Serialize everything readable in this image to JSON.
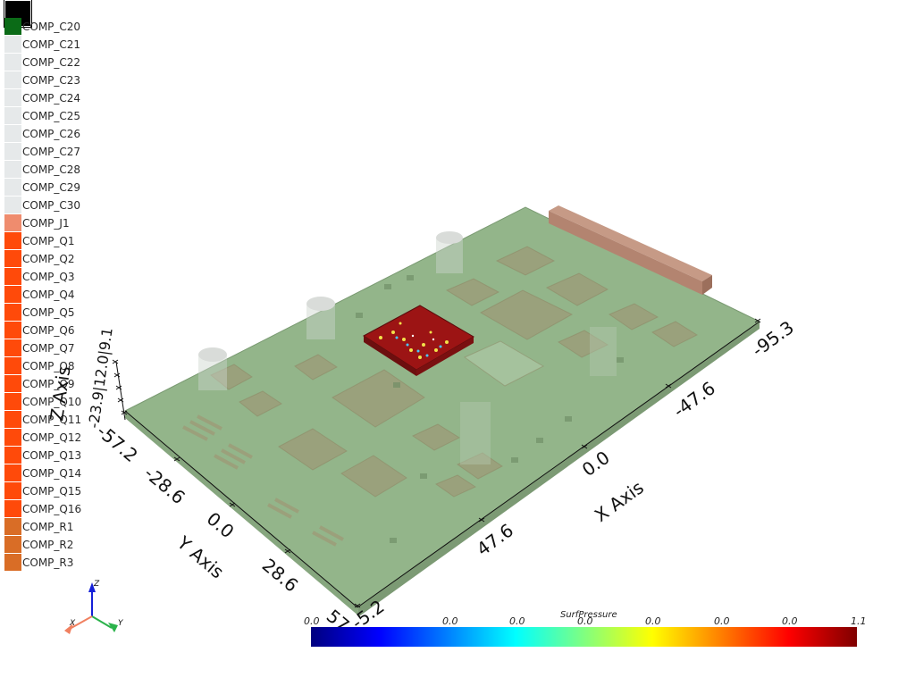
{
  "legend": {
    "items": [
      {
        "label": "COMP_C20",
        "color": "#0b6b17"
      },
      {
        "label": "COMP_C21",
        "color": "#e6e9ea"
      },
      {
        "label": "COMP_C22",
        "color": "#e6e9ea"
      },
      {
        "label": "COMP_C23",
        "color": "#e6e9ea"
      },
      {
        "label": "COMP_C24",
        "color": "#e6e9ea"
      },
      {
        "label": "COMP_C25",
        "color": "#e6e9ea"
      },
      {
        "label": "COMP_C26",
        "color": "#e6e9ea"
      },
      {
        "label": "COMP_C27",
        "color": "#e6e9ea"
      },
      {
        "label": "COMP_C28",
        "color": "#e6e9ea"
      },
      {
        "label": "COMP_C29",
        "color": "#e6e9ea"
      },
      {
        "label": "COMP_C30",
        "color": "#e6e9ea"
      },
      {
        "label": "COMP_J1",
        "color": "#ef8c6e"
      },
      {
        "label": "COMP_Q1",
        "color": "#ff4a0a"
      },
      {
        "label": "COMP_Q2",
        "color": "#ff4a0a"
      },
      {
        "label": "COMP_Q3",
        "color": "#ff4a0a"
      },
      {
        "label": "COMP_Q4",
        "color": "#ff4a0a"
      },
      {
        "label": "COMP_Q5",
        "color": "#ff4a0a"
      },
      {
        "label": "COMP_Q6",
        "color": "#ff4a0a"
      },
      {
        "label": "COMP_Q7",
        "color": "#ff4a0a"
      },
      {
        "label": "COMP_Q8",
        "color": "#ff4a0a"
      },
      {
        "label": "COMP_Q9",
        "color": "#ff4a0a"
      },
      {
        "label": "COMP_Q10",
        "color": "#ff4a0a"
      },
      {
        "label": "COMP_Q11",
        "color": "#ff4a0a"
      },
      {
        "label": "COMP_Q12",
        "color": "#ff4a0a"
      },
      {
        "label": "COMP_Q13",
        "color": "#ff4a0a"
      },
      {
        "label": "COMP_Q14",
        "color": "#ff4a0a"
      },
      {
        "label": "COMP_Q15",
        "color": "#ff4a0a"
      },
      {
        "label": "COMP_Q16",
        "color": "#ff4a0a"
      },
      {
        "label": "COMP_R1",
        "color": "#d96d26"
      },
      {
        "label": "COMP_R2",
        "color": "#d96d26"
      },
      {
        "label": "COMP_R3",
        "color": "#d96d26"
      }
    ]
  },
  "axes": {
    "x_title": "X Axis",
    "y_title": "Y Axis",
    "z_title": "Z Axis",
    "x_ticks": [
      "-95.3",
      "-47.6",
      "0.0",
      "47.6"
    ],
    "y_ticks": [
      "-57.2",
      "-28.6",
      "0.0",
      "28.6",
      "57.2"
    ],
    "z_ticks_overlap": "-23.9|12.0|9.1",
    "x_end_partial": "-5.2"
  },
  "orientation": {
    "x": "X",
    "y": "Y",
    "z": "Z"
  },
  "colorbar": {
    "title": "SurfPressure",
    "ticks": [
      "0.0",
      "0.0",
      "0.0",
      "0.0",
      "0.0",
      "0.0",
      "0.0",
      "1.1"
    ],
    "colormap": [
      "#00007f",
      "#0000ff",
      "#0080ff",
      "#00ffff",
      "#80ff80",
      "#ffff00",
      "#ff8000",
      "#ff0000",
      "#7f0000"
    ]
  },
  "colors": {
    "board": "#93b58a",
    "board_edge": "#6f8f66",
    "connector": "#b88873",
    "chip": "#a6181a"
  }
}
